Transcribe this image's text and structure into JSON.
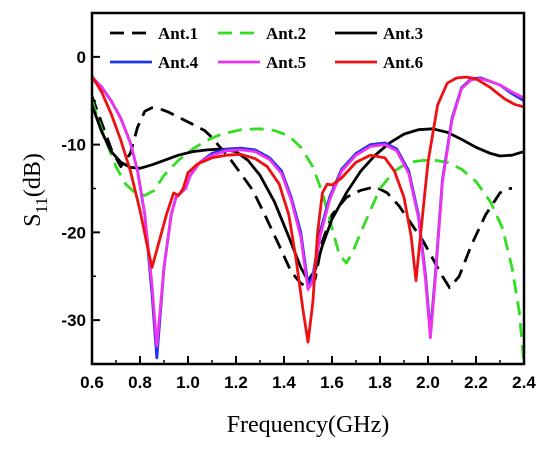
{
  "chart_data": {
    "type": "line",
    "xlabel": "Frequency(GHz)",
    "ylabel_main": "S",
    "ylabel_sub": "11",
    "ylabel_suffix": "(dB)",
    "xlim": [
      0.6,
      2.4
    ],
    "ylim": [
      -35,
      5
    ],
    "x_ticks": [
      0.6,
      0.8,
      1.0,
      1.2,
      1.4,
      1.6,
      1.8,
      2.0,
      2.2,
      2.4
    ],
    "x_tick_labels": [
      "0.6",
      "0.8",
      "1.0",
      "1.2",
      "1.4",
      "1.6",
      "1.8",
      "2.0",
      "2.2",
      "2.4"
    ],
    "y_ticks": [
      0,
      -10,
      -20,
      -30
    ],
    "y_tick_labels": [
      "0",
      "-10",
      "-20",
      "-30"
    ],
    "grid": false,
    "legend": "top",
    "series": [
      {
        "name": "Ant.1",
        "color": "#000000",
        "dash": "14,8",
        "points": [
          [
            0.6,
            -4.5
          ],
          [
            0.64,
            -7.5
          ],
          [
            0.68,
            -10.5
          ],
          [
            0.72,
            -12.5
          ],
          [
            0.76,
            -11
          ],
          [
            0.79,
            -8
          ],
          [
            0.82,
            -6.2
          ],
          [
            0.85,
            -5.8
          ],
          [
            0.88,
            -5.9
          ],
          [
            0.92,
            -6.3
          ],
          [
            0.97,
            -7
          ],
          [
            1.02,
            -7.7
          ],
          [
            1.07,
            -8.4
          ],
          [
            1.1,
            -9.2
          ],
          [
            1.14,
            -10.5
          ],
          [
            1.18,
            -11.8
          ],
          [
            1.22,
            -13.3
          ],
          [
            1.27,
            -15.2
          ],
          [
            1.32,
            -18
          ],
          [
            1.38,
            -21.5
          ],
          [
            1.43,
            -24.5
          ],
          [
            1.47,
            -25.8
          ],
          [
            1.5,
            -26.3
          ],
          [
            1.53,
            -25.3
          ],
          [
            1.56,
            -21
          ],
          [
            1.6,
            -18
          ],
          [
            1.66,
            -16
          ],
          [
            1.72,
            -15.2
          ],
          [
            1.78,
            -14.8
          ],
          [
            1.83,
            -15.5
          ],
          [
            1.88,
            -17
          ],
          [
            1.93,
            -19
          ],
          [
            1.98,
            -21
          ],
          [
            2.02,
            -23
          ],
          [
            2.06,
            -25
          ],
          [
            2.09,
            -26.3
          ],
          [
            2.13,
            -25
          ],
          [
            2.18,
            -21.5
          ],
          [
            2.24,
            -18
          ],
          [
            2.3,
            -15.5
          ],
          [
            2.33,
            -15
          ],
          [
            2.35,
            -15
          ]
        ]
      },
      {
        "name": "Ant.2",
        "color": "#33dd22",
        "dash": "14,8",
        "points": [
          [
            0.6,
            -5
          ],
          [
            0.65,
            -9
          ],
          [
            0.7,
            -12.5
          ],
          [
            0.74,
            -14.5
          ],
          [
            0.78,
            -15.5
          ],
          [
            0.82,
            -15.8
          ],
          [
            0.86,
            -15.2
          ],
          [
            0.9,
            -13.5
          ],
          [
            0.96,
            -11.8
          ],
          [
            1.02,
            -10.5
          ],
          [
            1.08,
            -9.5
          ],
          [
            1.14,
            -8.8
          ],
          [
            1.22,
            -8.3
          ],
          [
            1.3,
            -8.2
          ],
          [
            1.36,
            -8.4
          ],
          [
            1.42,
            -9
          ],
          [
            1.47,
            -10.3
          ],
          [
            1.52,
            -12.5
          ],
          [
            1.56,
            -15.5
          ],
          [
            1.6,
            -19.5
          ],
          [
            1.63,
            -22.5
          ],
          [
            1.66,
            -23.5
          ],
          [
            1.69,
            -22
          ],
          [
            1.72,
            -20
          ],
          [
            1.76,
            -17.5
          ],
          [
            1.8,
            -15
          ],
          [
            1.86,
            -13
          ],
          [
            1.92,
            -12
          ],
          [
            1.98,
            -11.8
          ],
          [
            2.03,
            -11.8
          ],
          [
            2.08,
            -12
          ],
          [
            2.14,
            -12.8
          ],
          [
            2.2,
            -14.2
          ],
          [
            2.26,
            -16.5
          ],
          [
            2.31,
            -19.5
          ],
          [
            2.35,
            -24
          ],
          [
            2.38,
            -29
          ],
          [
            2.4,
            -35
          ]
        ]
      },
      {
        "name": "Ant.3",
        "color": "#000000",
        "dash": "",
        "points": [
          [
            0.6,
            -5.5
          ],
          [
            0.64,
            -8.5
          ],
          [
            0.68,
            -10.8
          ],
          [
            0.72,
            -12
          ],
          [
            0.76,
            -12.6
          ],
          [
            0.8,
            -12.7
          ],
          [
            0.85,
            -12.3
          ],
          [
            0.9,
            -11.8
          ],
          [
            0.96,
            -11.2
          ],
          [
            1.02,
            -10.8
          ],
          [
            1.08,
            -10.6
          ],
          [
            1.14,
            -10.5
          ],
          [
            1.2,
            -10.8
          ],
          [
            1.25,
            -11.8
          ],
          [
            1.3,
            -13.5
          ],
          [
            1.36,
            -16.5
          ],
          [
            1.42,
            -20.5
          ],
          [
            1.47,
            -24
          ],
          [
            1.5,
            -25.5
          ],
          [
            1.53,
            -24.3
          ],
          [
            1.56,
            -21.5
          ],
          [
            1.6,
            -18.5
          ],
          [
            1.66,
            -15.5
          ],
          [
            1.72,
            -13
          ],
          [
            1.78,
            -11.2
          ],
          [
            1.84,
            -9.8
          ],
          [
            1.9,
            -8.8
          ],
          [
            1.96,
            -8.3
          ],
          [
            2.02,
            -8.2
          ],
          [
            2.08,
            -8.6
          ],
          [
            2.14,
            -9.4
          ],
          [
            2.2,
            -10.3
          ],
          [
            2.26,
            -11
          ],
          [
            2.3,
            -11.3
          ],
          [
            2.35,
            -11.2
          ],
          [
            2.4,
            -10.8
          ]
        ]
      },
      {
        "name": "Ant.4",
        "color": "#1f33ee",
        "dash": "",
        "points": [
          [
            0.6,
            -2.5
          ],
          [
            0.64,
            -3.5
          ],
          [
            0.68,
            -5
          ],
          [
            0.72,
            -7
          ],
          [
            0.76,
            -9.8
          ],
          [
            0.79,
            -13
          ],
          [
            0.82,
            -18
          ],
          [
            0.85,
            -27
          ],
          [
            0.87,
            -34.3
          ],
          [
            0.9,
            -24
          ],
          [
            0.93,
            -18
          ],
          [
            0.95,
            -16
          ],
          [
            0.97,
            -15.5
          ],
          [
            0.99,
            -15
          ],
          [
            1.01,
            -13.5
          ],
          [
            1.05,
            -12
          ],
          [
            1.1,
            -11
          ],
          [
            1.16,
            -10.5
          ],
          [
            1.22,
            -10.4
          ],
          [
            1.28,
            -10.6
          ],
          [
            1.34,
            -11.5
          ],
          [
            1.39,
            -13
          ],
          [
            1.43,
            -16
          ],
          [
            1.47,
            -20
          ],
          [
            1.5,
            -26
          ],
          [
            1.52,
            -25
          ],
          [
            1.55,
            -20
          ],
          [
            1.59,
            -16
          ],
          [
            1.64,
            -12.8
          ],
          [
            1.7,
            -11
          ],
          [
            1.76,
            -10
          ],
          [
            1.82,
            -9.8
          ],
          [
            1.87,
            -10.5
          ],
          [
            1.92,
            -13
          ],
          [
            1.96,
            -18
          ],
          [
            1.99,
            -25
          ],
          [
            2.01,
            -31.5
          ],
          [
            2.03,
            -25
          ],
          [
            2.06,
            -14
          ],
          [
            2.1,
            -7
          ],
          [
            2.14,
            -3.5
          ],
          [
            2.18,
            -2.5
          ],
          [
            2.22,
            -2.4
          ],
          [
            2.26,
            -2.8
          ],
          [
            2.3,
            -3.2
          ],
          [
            2.35,
            -4.2
          ],
          [
            2.4,
            -5
          ]
        ]
      },
      {
        "name": "Ant.5",
        "color": "#ee33ee",
        "dash": "",
        "points": [
          [
            0.6,
            -2.3
          ],
          [
            0.64,
            -3.4
          ],
          [
            0.68,
            -5
          ],
          [
            0.72,
            -7
          ],
          [
            0.76,
            -9.8
          ],
          [
            0.79,
            -13
          ],
          [
            0.82,
            -18
          ],
          [
            0.85,
            -26
          ],
          [
            0.87,
            -33
          ],
          [
            0.9,
            -24
          ],
          [
            0.93,
            -18
          ],
          [
            0.95,
            -16
          ],
          [
            0.97,
            -15.5
          ],
          [
            0.99,
            -15
          ],
          [
            1.01,
            -13.5
          ],
          [
            1.05,
            -12
          ],
          [
            1.1,
            -11.2
          ],
          [
            1.16,
            -10.7
          ],
          [
            1.22,
            -10.6
          ],
          [
            1.28,
            -10.8
          ],
          [
            1.34,
            -11.7
          ],
          [
            1.39,
            -13.3
          ],
          [
            1.43,
            -16.3
          ],
          [
            1.47,
            -20.5
          ],
          [
            1.5,
            -26.5
          ],
          [
            1.52,
            -25.5
          ],
          [
            1.55,
            -20.5
          ],
          [
            1.59,
            -16.3
          ],
          [
            1.64,
            -13
          ],
          [
            1.7,
            -11.2
          ],
          [
            1.76,
            -10.2
          ],
          [
            1.82,
            -10
          ],
          [
            1.87,
            -10.7
          ],
          [
            1.92,
            -13.3
          ],
          [
            1.96,
            -18.3
          ],
          [
            1.99,
            -25.5
          ],
          [
            2.01,
            -32
          ],
          [
            2.03,
            -25.5
          ],
          [
            2.06,
            -14.3
          ],
          [
            2.1,
            -7.2
          ],
          [
            2.14,
            -3.6
          ],
          [
            2.18,
            -2.6
          ],
          [
            2.22,
            -2.5
          ],
          [
            2.26,
            -2.8
          ],
          [
            2.3,
            -3.2
          ],
          [
            2.35,
            -4
          ],
          [
            2.4,
            -4.7
          ]
        ]
      },
      {
        "name": "Ant.6",
        "color": "#ee1111",
        "dash": "",
        "points": [
          [
            0.6,
            -2.2
          ],
          [
            0.64,
            -4
          ],
          [
            0.68,
            -6.5
          ],
          [
            0.72,
            -9.5
          ],
          [
            0.76,
            -13
          ],
          [
            0.8,
            -17.5
          ],
          [
            0.83,
            -21.5
          ],
          [
            0.85,
            -24
          ],
          [
            0.88,
            -21
          ],
          [
            0.91,
            -18
          ],
          [
            0.94,
            -15.5
          ],
          [
            0.96,
            -15.8
          ],
          [
            0.98,
            -15
          ],
          [
            1.0,
            -13.2
          ],
          [
            1.04,
            -12.2
          ],
          [
            1.1,
            -11.5
          ],
          [
            1.16,
            -11.2
          ],
          [
            1.22,
            -11.1
          ],
          [
            1.28,
            -11.6
          ],
          [
            1.33,
            -12.5
          ],
          [
            1.38,
            -14.5
          ],
          [
            1.42,
            -18
          ],
          [
            1.45,
            -23
          ],
          [
            1.48,
            -29
          ],
          [
            1.5,
            -32.5
          ],
          [
            1.52,
            -28
          ],
          [
            1.54,
            -20
          ],
          [
            1.56,
            -15.5
          ],
          [
            1.58,
            -14.5
          ],
          [
            1.6,
            -14.6
          ],
          [
            1.64,
            -13.8
          ],
          [
            1.7,
            -12
          ],
          [
            1.76,
            -11.2
          ],
          [
            1.82,
            -11.5
          ],
          [
            1.86,
            -13
          ],
          [
            1.9,
            -16
          ],
          [
            1.93,
            -20.5
          ],
          [
            1.95,
            -25.5
          ],
          [
            1.97,
            -20
          ],
          [
            2.0,
            -12
          ],
          [
            2.04,
            -5.5
          ],
          [
            2.08,
            -3
          ],
          [
            2.12,
            -2.4
          ],
          [
            2.16,
            -2.3
          ],
          [
            2.2,
            -2.5
          ],
          [
            2.26,
            -3.5
          ],
          [
            2.32,
            -4.8
          ],
          [
            2.36,
            -5.4
          ],
          [
            2.4,
            -5.7
          ]
        ]
      }
    ]
  }
}
